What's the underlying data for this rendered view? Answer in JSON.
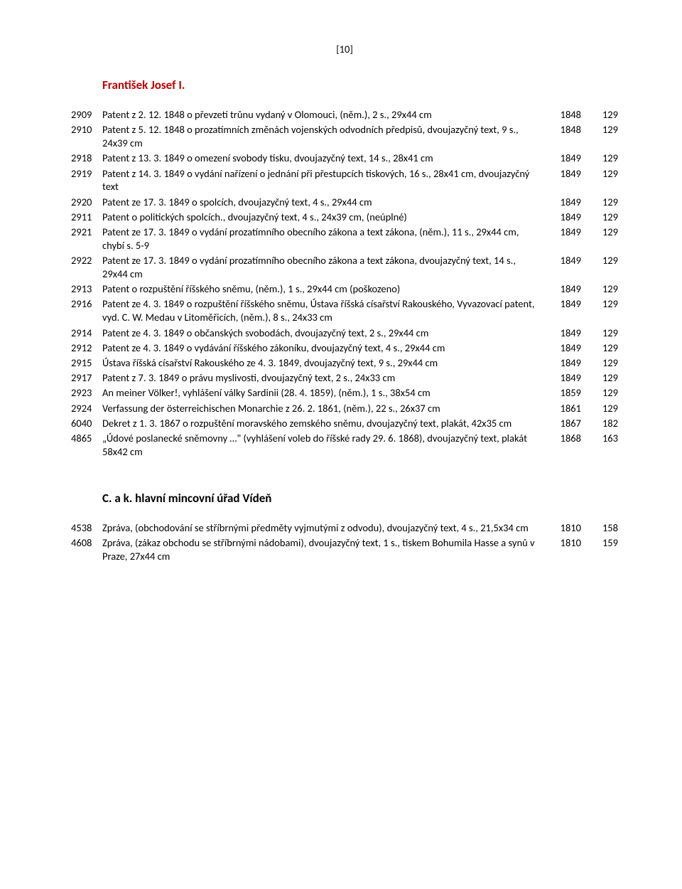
{
  "page_number": "[10]",
  "heading1": "František Josef I.",
  "heading2": "C. a k. hlavní mincovní úřad Vídeň",
  "entries1": [
    {
      "id": "2909",
      "desc": "Patent z 2. 12. 1848 o převzetí trůnu vydaný v Olomouci, (něm.), 2 s., 29x44 cm",
      "year": "1848",
      "ref": "129"
    },
    {
      "id": "2910",
      "desc": "Patent z 5. 12. 1848 o prozatímních změnách vojenských odvodních předpisů, dvoujazyčný text, 9 s., 24x39 cm",
      "year": "1848",
      "ref": "129"
    },
    {
      "id": "2918",
      "desc": "Patent z 13. 3. 1849 o omezení svobody tisku, dvoujazyčný text, 14 s., 28x41 cm",
      "year": "1849",
      "ref": "129"
    },
    {
      "id": "2919",
      "desc": "Patent z 14. 3. 1849 o vydání nařízení o jednání při přestupcích tiskových, 16 s., 28x41 cm, dvoujazyčný text",
      "year": "1849",
      "ref": "129"
    },
    {
      "id": "2920",
      "desc": "Patent ze 17. 3. 1849 o spolcích, dvoujazyčný text, 4 s., 29x44 cm",
      "year": "1849",
      "ref": "129"
    },
    {
      "id": "2911",
      "desc": "Patent o politických spolcích., dvoujazyčný text, 4 s., 24x39 cm, (neúplné)",
      "year": "1849",
      "ref": "129"
    },
    {
      "id": "2921",
      "desc": "Patent ze 17. 3. 1849 o vydání prozatímního obecního zákona a text zákona, (něm.), 11 s., 29x44 cm, chybí s. 5-9",
      "year": "1849",
      "ref": "129"
    },
    {
      "id": "2922",
      "desc": "Patent ze 17. 3. 1849 o vydání prozatímního obecního zákona a text zákona, dvoujazyčný text, 14 s., 29x44 cm",
      "year": "1849",
      "ref": "129"
    },
    {
      "id": "2913",
      "desc": "Patent o rozpuštění říšského sněmu, (něm.), 1 s., 29x44 cm (poškozeno)",
      "year": "1849",
      "ref": "129"
    },
    {
      "id": "2916",
      "desc": "Patent ze 4. 3. 1849 o rozpuštění říšského sněmu, Ústava říšská císařství Rakouského, Vyvazovací patent, vyd. C. W. Medau v Litoměřicích, (něm.), 8 s., 24x33 cm",
      "year": "1849",
      "ref": "129"
    },
    {
      "id": "2914",
      "desc": "Patent ze 4. 3. 1849 o občanských svobodách, dvoujazyčný text, 2 s., 29x44 cm",
      "year": "1849",
      "ref": "129"
    },
    {
      "id": "2912",
      "desc": "Patent ze 4. 3. 1849 o vydávání říšského zákoníku, dvoujazyčný text, 4 s., 29x44 cm",
      "year": "1849",
      "ref": "129"
    },
    {
      "id": "2915",
      "desc": "Ústava říšská císařství Rakouského ze 4. 3. 1849, dvoujazyčný text, 9 s., 29x44 cm",
      "year": "1849",
      "ref": "129"
    },
    {
      "id": "2917",
      "desc": "Patent z 7. 3. 1849 o právu myslivosti, dvoujazyčný text, 2 s., 24x33 cm",
      "year": "1849",
      "ref": "129"
    },
    {
      "id": "2923",
      "desc": "An meiner Völker!, vyhlášení války Sardinii (28. 4. 1859), (něm.), 1 s., 38x54 cm",
      "year": "1859",
      "ref": "129"
    },
    {
      "id": "2924",
      "desc": "Verfassung der österreichischen Monarchie z 26. 2. 1861, (něm.), 22 s., 26x37 cm",
      "year": "1861",
      "ref": "129"
    },
    {
      "id": "6040",
      "desc": "Dekret z 1. 3. 1867 o rozpuštění moravského zemského sněmu, dvoujazyčný text, plakát, 42x35 cm",
      "year": "1867",
      "ref": "182"
    },
    {
      "id": "4865",
      "desc": "„Údové poslanecké sněmovny …\" (vyhlášení voleb do říšské rady 29. 6. 1868), dvoujazyčný text, plakát 58x42 cm",
      "year": "1868",
      "ref": "163"
    }
  ],
  "entries2": [
    {
      "id": "4538",
      "desc": "Zpráva, (obchodování se stříbrnými předměty vyjmutými z odvodu), dvoujazyčný text, 4 s., 21,5x34 cm",
      "year": "1810",
      "ref": "158"
    },
    {
      "id": "4608",
      "desc": "Zpráva, (zákaz obchodu se stříbrnými nádobami), dvoujazyčný text, 1 s., tiskem Bohumila Hasse a synů v Praze, 27x44 cm",
      "year": "1810",
      "ref": "159"
    }
  ]
}
